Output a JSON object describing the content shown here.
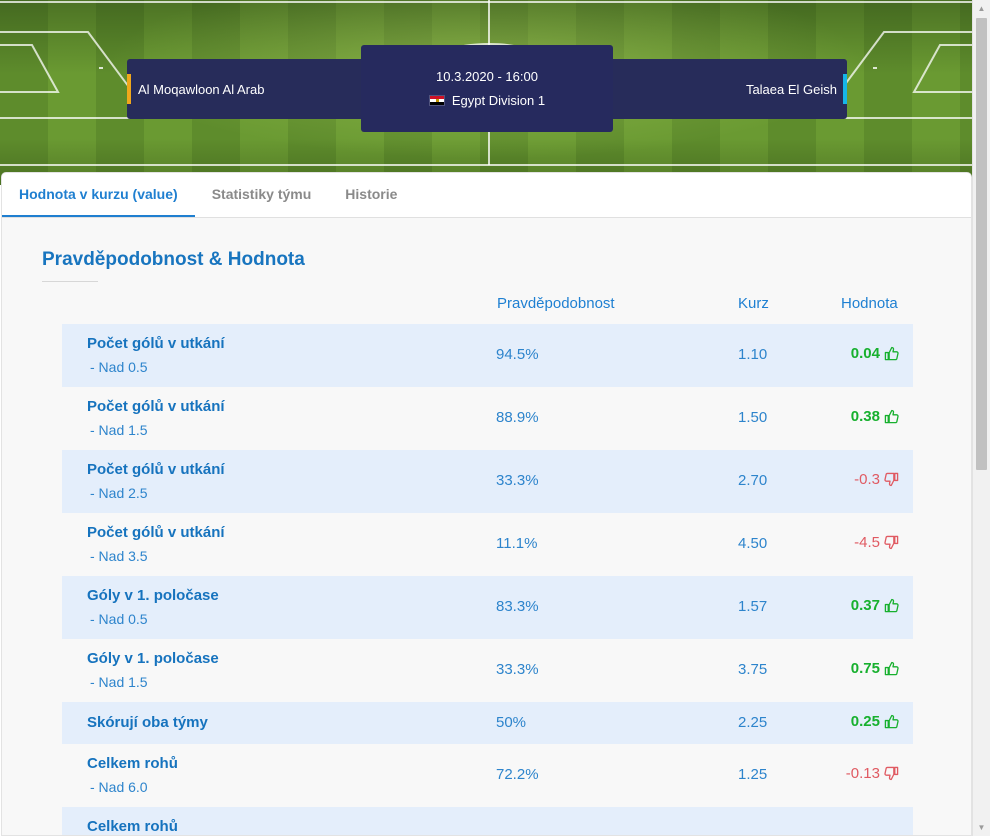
{
  "header": {
    "home_team": "Al Moqawloon Al Arab",
    "away_team": "Talaea El Geish",
    "datetime": "10.3.2020 - 16:00",
    "league": "Egypt Division 1",
    "home_color": "#f0a81c",
    "away_color": "#16b6e8"
  },
  "tabs": [
    {
      "label": "Hodnota v kurzu (value)",
      "active": true
    },
    {
      "label": "Statistiky týmu",
      "active": false
    },
    {
      "label": "Historie",
      "active": false
    }
  ],
  "section": {
    "title": "Pravděpodobnost & Hodnota",
    "col_probability": "Pravděpodobnost",
    "col_odds": "Kurz",
    "col_value": "Hodnota"
  },
  "rows": [
    {
      "market": "Počet gólů v utkání",
      "selection": "- Nad 0.5",
      "probability": "94.5%",
      "odds": "1.10",
      "value": "0.04",
      "positive": true
    },
    {
      "market": "Počet gólů v utkání",
      "selection": "- Nad 1.5",
      "probability": "88.9%",
      "odds": "1.50",
      "value": "0.38",
      "positive": true
    },
    {
      "market": "Počet gólů v utkání",
      "selection": "- Nad 2.5",
      "probability": "33.3%",
      "odds": "2.70",
      "value": "-0.3",
      "positive": false
    },
    {
      "market": "Počet gólů v utkání",
      "selection": "- Nad 3.5",
      "probability": "11.1%",
      "odds": "4.50",
      "value": "-4.5",
      "positive": false
    },
    {
      "market": "Góly v 1. poločase",
      "selection": "- Nad 0.5",
      "probability": "83.3%",
      "odds": "1.57",
      "value": "0.37",
      "positive": true
    },
    {
      "market": "Góly v 1. poločase",
      "selection": "- Nad 1.5",
      "probability": "33.3%",
      "odds": "3.75",
      "value": "0.75",
      "positive": true
    },
    {
      "market": "Skórují oba týmy",
      "selection": "",
      "probability": "50%",
      "odds": "2.25",
      "value": "0.25",
      "positive": true
    },
    {
      "market": "Celkem rohů",
      "selection": "- Nad 6.0",
      "probability": "72.2%",
      "odds": "1.25",
      "value": "-0.13",
      "positive": false
    },
    {
      "market": "Celkem rohů",
      "selection": "",
      "probability": "",
      "odds": "",
      "value": "",
      "positive": null
    }
  ],
  "icons": {
    "thumbs_up": "thumbs-up-icon",
    "thumbs_down": "thumbs-down-icon",
    "flag": "egypt-flag-icon"
  },
  "colors": {
    "positive": "#17b02e",
    "negative": "#e05a62",
    "accent": "#1f7fd0"
  }
}
